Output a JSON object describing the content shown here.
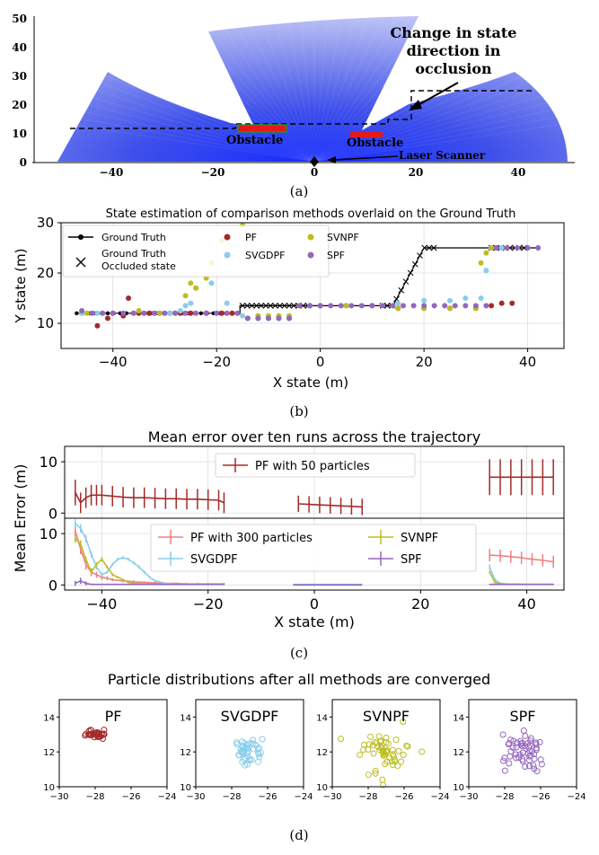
{
  "colors": {
    "pf": "#a52a2a",
    "svgdpf": "#87ceeb",
    "svnpf": "#bcbd22",
    "spf": "#9467bd",
    "pf300": "#f08080",
    "ground_truth": "#000000",
    "laser": "#2b3de0"
  },
  "captions": {
    "a": "(a)",
    "b": "(b)",
    "c": "(c)",
    "d": "(d)"
  },
  "panel_a": {
    "annotation_lines": [
      "Change in state",
      "direction in",
      "occlusion"
    ],
    "obstacle_label": "Obstacle",
    "laser_label": "Laser Scanner",
    "x_ticks": [
      "−40",
      "−20",
      "0",
      "20",
      "40"
    ],
    "y_ticks": [
      "0",
      "10",
      "20",
      "30",
      "40",
      "50"
    ]
  },
  "chart_data": [
    {
      "panel": "b",
      "type": "scatter",
      "title": "State estimation of comparison methods overlaid on the Ground Truth",
      "xlabel": "X state (m)",
      "ylabel": "Y state (m)",
      "xlim": [
        -50,
        47
      ],
      "ylim": [
        5,
        30
      ],
      "x_ticks": [
        -40,
        -20,
        0,
        20,
        40
      ],
      "y_ticks": [
        10,
        20,
        30
      ],
      "x_tick_labels": [
        "−40",
        "−20",
        "0",
        "20",
        "40"
      ],
      "y_tick_labels": [
        "10",
        "20",
        "30"
      ],
      "grid": true,
      "legend": [
        {
          "label": "Ground Truth",
          "marker": "line-dot",
          "color": "#000000"
        },
        {
          "label": "Ground Truth\nOccluded state",
          "marker": "x",
          "color": "#000000"
        },
        {
          "label": "PF",
          "marker": "dot",
          "color": "#a52a2a"
        },
        {
          "label": "SVGDPF",
          "marker": "dot",
          "color": "#87ceeb"
        },
        {
          "label": "SVNPF",
          "marker": "dot",
          "color": "#bcbd22"
        },
        {
          "label": "SPF",
          "marker": "dot",
          "color": "#9467bd"
        }
      ],
      "ground_truth": {
        "x": [
          -47,
          -15.5,
          -15.5,
          14,
          20,
          42
        ],
        "y": [
          12,
          12,
          13.5,
          13.5,
          25,
          25
        ]
      },
      "occluded_x": [
        [
          -15,
          -2
        ],
        [
          12,
          22
        ],
        [
          33,
          40
        ]
      ],
      "series": [
        {
          "name": "PF",
          "x": [
            -46,
            -43,
            -41,
            -38,
            -37,
            -35,
            -33,
            -31,
            -29,
            -27,
            -25,
            -22,
            -19,
            -17,
            -14,
            -12,
            -10,
            -8,
            -6,
            0,
            5,
            10,
            15,
            20,
            25,
            30,
            33,
            35,
            37
          ],
          "y": [
            12,
            9.5,
            11,
            11.5,
            15,
            12,
            12,
            12,
            12,
            12,
            12,
            12,
            12,
            12,
            11,
            11,
            11,
            11,
            11,
            13.5,
            13.5,
            13.5,
            13,
            13,
            13,
            13,
            13.5,
            14,
            14
          ]
        },
        {
          "name": "SVGDPF",
          "x": [
            -46,
            -43,
            -40,
            -36,
            -32,
            -29,
            -27,
            -26,
            -25,
            -24,
            -21,
            -18,
            -15,
            -12,
            -10,
            -8,
            -6,
            -4,
            -2,
            5,
            10,
            15,
            20,
            25,
            28,
            31,
            32,
            33,
            35
          ],
          "y": [
            12,
            12,
            12,
            12,
            12,
            12,
            12.5,
            13.5,
            14,
            17,
            18,
            14,
            11.5,
            11,
            11,
            11,
            11,
            13.5,
            13.5,
            13.5,
            13.5,
            14,
            14.5,
            14.5,
            15,
            15,
            20.5,
            25,
            25
          ]
        },
        {
          "name": "SVNPF",
          "x": [
            -45,
            -40,
            -35,
            -31,
            -28,
            -26,
            -25,
            -24,
            -22,
            -21,
            -19,
            -15,
            -12,
            -10,
            -8,
            -6,
            -2,
            5,
            10,
            15,
            20,
            25,
            30,
            31,
            32,
            33
          ],
          "y": [
            12,
            12,
            12.5,
            12,
            12,
            15.5,
            18,
            17,
            19,
            22,
            26.5,
            29.5,
            11.5,
            11.5,
            11.5,
            11.5,
            13.5,
            13.5,
            13.5,
            13,
            13,
            13,
            13,
            22,
            24,
            25
          ]
        },
        {
          "name": "SPF",
          "x": [
            -46,
            -44,
            -42,
            -40,
            -38,
            -36,
            -34,
            -32,
            -30,
            -28,
            -26,
            -24,
            -22,
            -20,
            -18,
            -16,
            -14,
            -12,
            -10,
            -8,
            -6,
            -4,
            -2,
            0,
            2,
            4,
            6,
            8,
            10,
            12,
            14,
            16,
            18,
            20,
            22,
            24,
            26,
            28,
            30,
            32,
            34,
            36,
            38,
            40,
            42
          ],
          "y": [
            12.5,
            12,
            12,
            12,
            12,
            12,
            12,
            12,
            12,
            12,
            12,
            12,
            12,
            12,
            12,
            12,
            11,
            11,
            11,
            11,
            11,
            13.5,
            13.5,
            13.5,
            13.5,
            13.5,
            13.5,
            13.5,
            13.5,
            13.5,
            13.5,
            13.5,
            13.5,
            13.5,
            13.5,
            13.5,
            13.5,
            13.5,
            13.5,
            13.5,
            25,
            25,
            25,
            25,
            25
          ]
        }
      ]
    },
    {
      "panel": "c",
      "type": "line",
      "title": "Mean error over ten runs across the trajectory",
      "xlabel": "X state (m)",
      "ylabel": "Mean Error (m)",
      "xlim": [
        -47,
        47
      ],
      "ylim_top": [
        -1,
        13
      ],
      "ylim_bottom": [
        -1,
        13
      ],
      "x_ticks": [
        -40,
        -20,
        0,
        20,
        40
      ],
      "x_tick_labels": [
        "−40",
        "−20",
        "0",
        "20",
        "40"
      ],
      "y_ticks": [
        0,
        10
      ],
      "y_tick_labels": [
        "0",
        "10"
      ],
      "grid": true,
      "legend_top": [
        "PF with 50 particles"
      ],
      "legend_bottom": [
        "PF with 300 particles",
        "SVGDPF",
        "SVNPF",
        "SPF"
      ],
      "top_series": [
        {
          "name": "PF with 50 particles",
          "segments": [
            {
              "x": [
                -45,
                -44,
                -43,
                -42,
                -41,
                -40,
                -38,
                -36,
                -34,
                -32,
                -30,
                -28,
                -26,
                -24,
                -22,
                -20,
                -18,
                -17
              ],
              "y": [
                4,
                2,
                3,
                3.5,
                3.5,
                3.5,
                3.3,
                3.1,
                3,
                3,
                2.9,
                2.8,
                2.8,
                2.7,
                2.7,
                2.6,
                2.5,
                2
              ],
              "err": [
                2.5,
                2,
                2,
                2,
                2,
                2,
                2,
                2,
                2,
                2,
                2,
                2,
                2,
                2,
                2,
                2,
                2,
                2
              ]
            },
            {
              "x": [
                -3,
                -1,
                1,
                3,
                5,
                7,
                9
              ],
              "y": [
                1.8,
                1.7,
                1.6,
                1.5,
                1.4,
                1.3,
                1.2
              ],
              "err": [
                1.6,
                1.6,
                1.6,
                1.6,
                1.6,
                1.6,
                1.6
              ]
            },
            {
              "x": [
                33,
                35,
                37,
                39,
                41,
                43,
                45
              ],
              "y": [
                7,
                7,
                7,
                7,
                7,
                7,
                7
              ],
              "err": [
                3.5,
                3.5,
                3.5,
                3.5,
                3.5,
                3.5,
                3.5
              ]
            }
          ]
        }
      ],
      "bottom_series": [
        {
          "name": "PF with 300 particles",
          "segments": [
            {
              "x": [
                -45,
                -44,
                -43,
                -42,
                -41,
                -40,
                -39,
                -38,
                -36,
                -34,
                -32,
                -30,
                -28,
                -26,
                -24,
                -22,
                -20,
                -17
              ],
              "y": [
                10.5,
                7,
                4,
                2.5,
                2,
                1.5,
                1.3,
                1,
                0.8,
                0.6,
                0.5,
                0.4,
                0.3,
                0.3,
                0.2,
                0.2,
                0.2,
                0.2
              ],
              "err": [
                1,
                1,
                1,
                0.8,
                0.6,
                0.5,
                0.4,
                0.3,
                0.3,
                0.3,
                0.2,
                0.2,
                0.2,
                0.2,
                0.2,
                0.2,
                0.2,
                0.2
              ]
            },
            {
              "x": [
                33,
                35,
                37,
                39,
                41,
                43,
                45
              ],
              "y": [
                5.8,
                5.7,
                5.5,
                5.3,
                5,
                4.8,
                4.5
              ],
              "err": [
                1.2,
                1.2,
                1.2,
                1.2,
                1.2,
                1.2,
                1.2
              ]
            }
          ]
        },
        {
          "name": "SVGDPF",
          "segments": [
            {
              "x": [
                -45,
                -44,
                -43,
                -42,
                -41,
                -40,
                -39,
                -38,
                -37,
                -36,
                -35,
                -34,
                -33,
                -32,
                -31,
                -30,
                -28,
                -26,
                -20,
                -17
              ],
              "y": [
                12,
                11,
                9,
                6,
                3.5,
                2,
                2.5,
                4,
                5,
                5.3,
                5,
                4.3,
                3.5,
                2.5,
                1.5,
                0.8,
                0.3,
                0.2,
                0.1,
                0.1
              ],
              "err": [
                0.8,
                0.8,
                0.7,
                0.6,
                0.5,
                0.4,
                0.3,
                0.3,
                0.3,
                0.3,
                0.3,
                0.3,
                0.3,
                0.3,
                0.2,
                0.2,
                0.1,
                0.1,
                0.1,
                0.1
              ]
            },
            {
              "x": [
                -4,
                0,
                4,
                9
              ],
              "y": [
                0.1,
                0.1,
                0.1,
                0.1
              ],
              "err": [
                0,
                0,
                0,
                0
              ]
            },
            {
              "x": [
                33,
                34,
                35,
                37,
                40,
                45
              ],
              "y": [
                3.5,
                1,
                0.3,
                0.1,
                0.1,
                0.1
              ],
              "err": [
                0.5,
                0.3,
                0.2,
                0.1,
                0.1,
                0.1
              ]
            }
          ]
        },
        {
          "name": "SVNPF",
          "segments": [
            {
              "x": [
                -45,
                -44,
                -43,
                -42,
                -41,
                -40,
                -39,
                -38,
                -37,
                -36,
                -35,
                -34,
                -32,
                -30,
                -28,
                -25,
                -20,
                -17
              ],
              "y": [
                9,
                8,
                5,
                2.5,
                4,
                5,
                3.5,
                2,
                1.5,
                1,
                0.5,
                0.3,
                0.2,
                0.2,
                0.1,
                0.1,
                0.1,
                0.1
              ],
              "err": [
                0.8,
                0.7,
                0.5,
                0.4,
                0.4,
                0.4,
                0.3,
                0.3,
                0.2,
                0.2,
                0.2,
                0.1,
                0.1,
                0.1,
                0.1,
                0.1,
                0.1,
                0.1
              ]
            },
            {
              "x": [
                33,
                34,
                35,
                40,
                45
              ],
              "y": [
                2.5,
                0.5,
                0.2,
                0.1,
                0.1
              ],
              "err": [
                0.3,
                0.2,
                0.1,
                0.1,
                0.1
              ]
            }
          ]
        },
        {
          "name": "SPF",
          "segments": [
            {
              "x": [
                -45,
                -44,
                -43,
                -42,
                -40,
                -35,
                -30,
                -25,
                -20,
                -17
              ],
              "y": [
                0.3,
                0.8,
                0.3,
                0.1,
                0.1,
                0.1,
                0.1,
                0.1,
                0.1,
                0.1
              ],
              "err": [
                0.5,
                0.6,
                0.4,
                0.1,
                0.1,
                0.1,
                0.1,
                0.1,
                0.1,
                0.1
              ]
            },
            {
              "x": [
                -4,
                0,
                4,
                9
              ],
              "y": [
                0,
                0,
                0,
                0
              ],
              "err": [
                0,
                0,
                0,
                0
              ]
            },
            {
              "x": [
                33,
                36,
                40,
                45
              ],
              "y": [
                0.1,
                0.1,
                0.1,
                0.1
              ],
              "err": [
                0.1,
                0.1,
                0.1,
                0.1
              ]
            }
          ]
        }
      ]
    },
    {
      "panel": "d",
      "type": "scatter",
      "title": "Particle distributions after all methods are converged",
      "xlim": [
        -30,
        -24
      ],
      "ylim": [
        10,
        15
      ],
      "x_ticks": [
        -30,
        -28,
        -26,
        -24
      ],
      "x_tick_labels": [
        "−30",
        "−28",
        "−26",
        "−24"
      ],
      "y_ticks": [
        10,
        12,
        14
      ],
      "y_tick_labels": [
        "10",
        "12",
        "14"
      ],
      "subplots": [
        {
          "name": "PF",
          "center": [
            -28,
            13
          ],
          "spread": [
            0.45,
            0.2
          ],
          "n": 30
        },
        {
          "name": "SVGDPF",
          "center": [
            -27,
            12
          ],
          "spread": [
            0.7,
            0.6
          ],
          "n": 45
        },
        {
          "name": "SVNPF",
          "center": [
            -27,
            12
          ],
          "spread": [
            1.0,
            1.0
          ],
          "n": 55
        },
        {
          "name": "SPF",
          "center": [
            -27,
            12
          ],
          "spread": [
            1.1,
            1.0
          ],
          "n": 55
        }
      ]
    }
  ]
}
